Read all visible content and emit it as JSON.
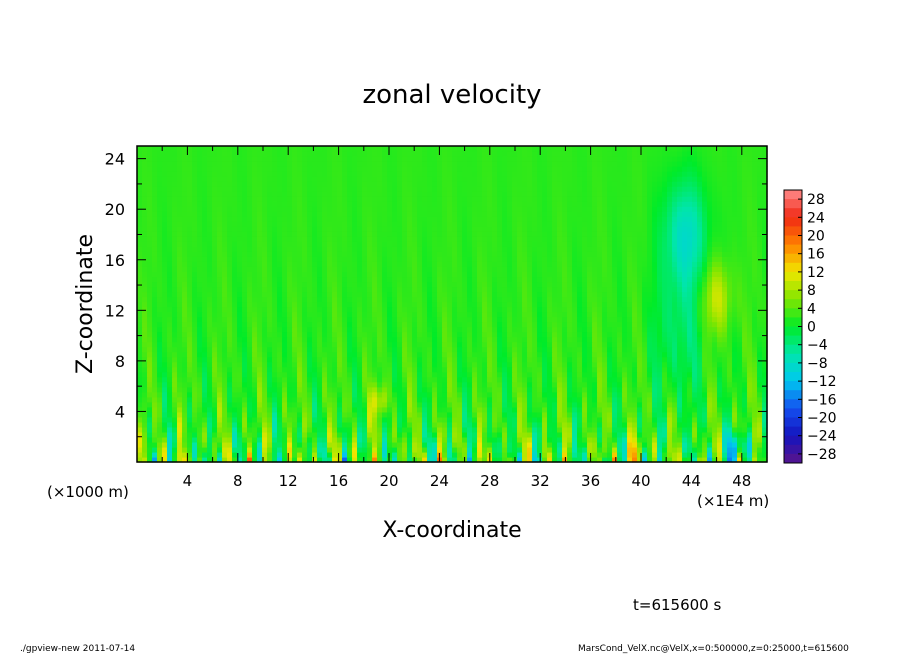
{
  "chart_data": {
    "type": "heatmap",
    "title": "zonal velocity",
    "xlabel": "X-coordinate",
    "ylabel": "Z-coordinate",
    "x_unit_left": "(×1000 m)",
    "x_unit_right": "(×1E4 m)",
    "xlim": [
      0,
      50
    ],
    "ylim": [
      0,
      25
    ],
    "x_ticks": [
      "4",
      "8",
      "12",
      "16",
      "20",
      "24",
      "28",
      "32",
      "36",
      "40",
      "44",
      "48"
    ],
    "y_ticks": [
      "4",
      "8",
      "12",
      "16",
      "20",
      "24"
    ],
    "colorbar": {
      "labels": [
        "28",
        "24",
        "20",
        "16",
        "12",
        "8",
        "4",
        "0",
        "−4",
        "−8",
        "−12",
        "−16",
        "−20",
        "−24",
        "−28"
      ],
      "min": -30,
      "max": 30
    },
    "annotations": {
      "time": "t=615600 s",
      "footer_left": "./gpview-new   2011-07-14",
      "footer_right": "MarsCond_VelX.nc@VelX,x=0:500000,z=0:25000,t=615600"
    }
  }
}
